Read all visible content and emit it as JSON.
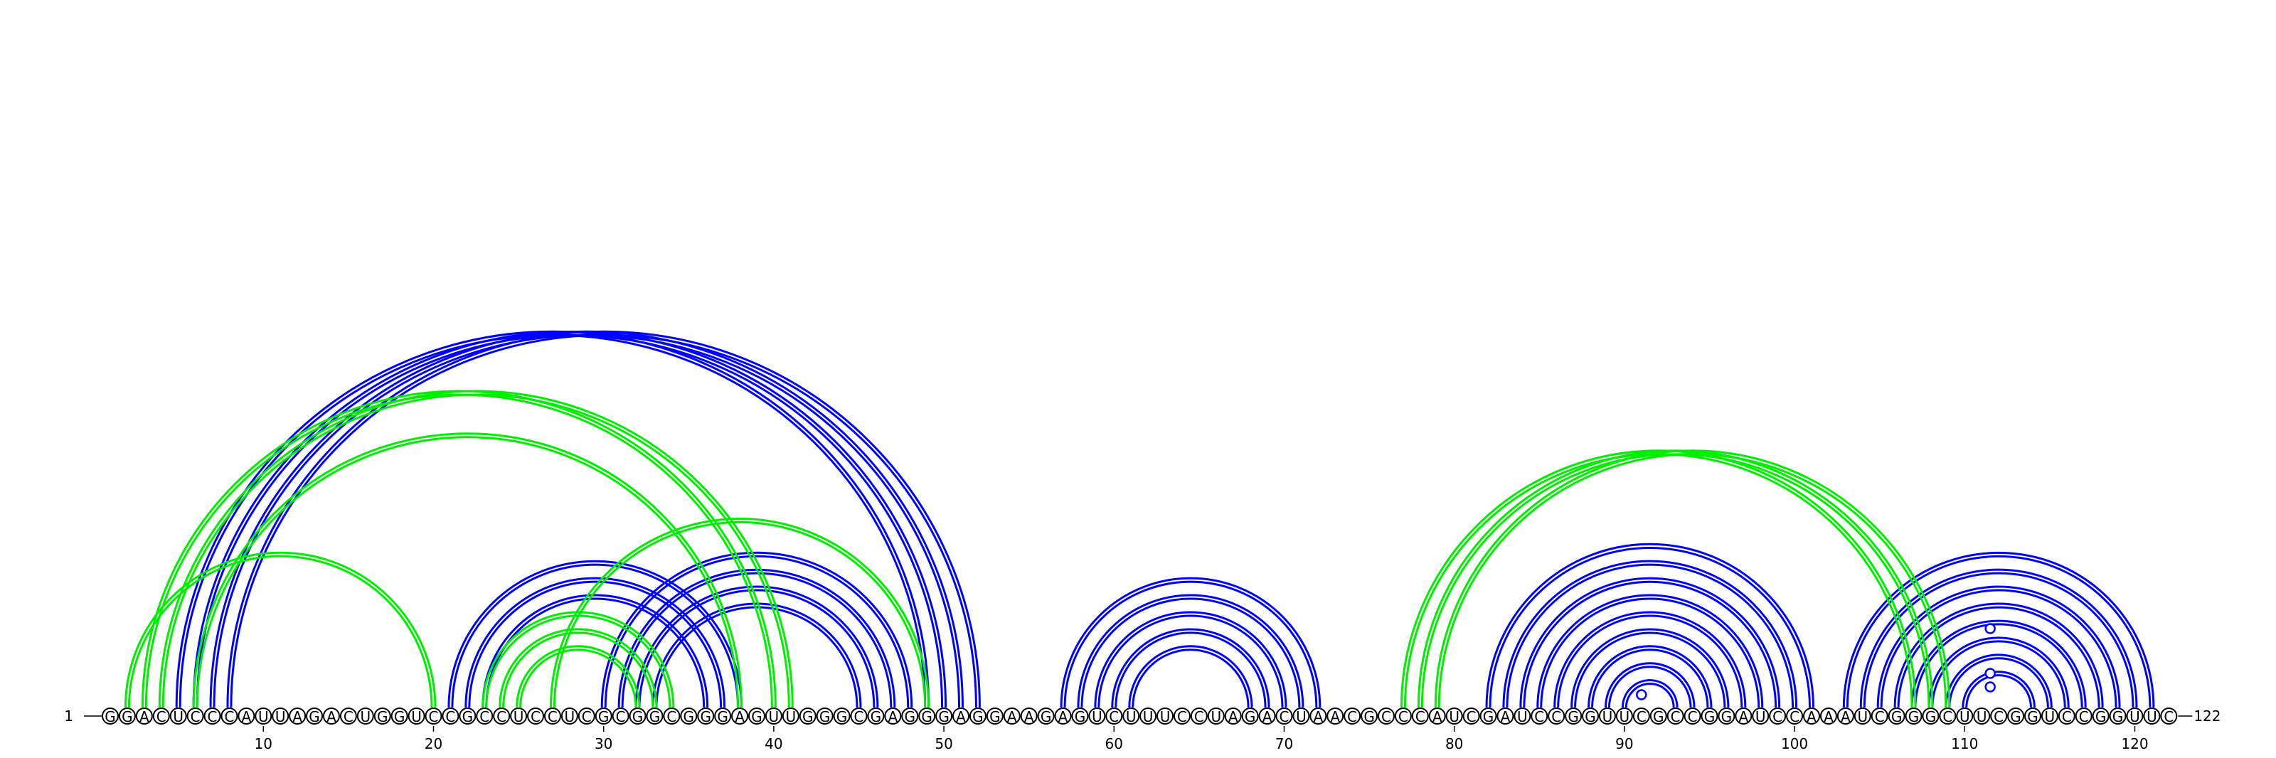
{
  "sequence": "GGACUCCCAUUAGACUGGUCCGCCUCCUCGCGGCGGGAGUUGGGCGAGGGAGGAAGAGUCUUUCCUAGACUAACGCCCAUCGAUCCGGUUCGCCGGAUCCAAAUCGGGCUUCGGUCCGGUUC",
  "start_label": "1",
  "end_label": "122",
  "tick_labels": [
    "10",
    "20",
    "30",
    "40",
    "50",
    "60",
    "70",
    "80",
    "90",
    "100",
    "110",
    "120"
  ],
  "colors": {
    "blue": "#0000ff",
    "green": "#00ee00"
  },
  "arcs": [
    {
      "i": 5,
      "j": 49,
      "color": "blue"
    },
    {
      "i": 6,
      "j": 50,
      "color": "blue"
    },
    {
      "i": 7,
      "j": 51,
      "color": "blue"
    },
    {
      "i": 8,
      "j": 52,
      "color": "blue"
    },
    {
      "i": 21,
      "j": 38,
      "color": "blue"
    },
    {
      "i": 22,
      "j": 37,
      "color": "blue"
    },
    {
      "i": 23,
      "j": 36,
      "color": "blue"
    },
    {
      "i": 30,
      "j": 48,
      "color": "blue"
    },
    {
      "i": 31,
      "j": 47,
      "color": "blue"
    },
    {
      "i": 32,
      "j": 46,
      "color": "blue"
    },
    {
      "i": 33,
      "j": 45,
      "color": "blue"
    },
    {
      "i": 57,
      "j": 72,
      "color": "blue"
    },
    {
      "i": 58,
      "j": 71,
      "color": "blue"
    },
    {
      "i": 59,
      "j": 70,
      "color": "blue"
    },
    {
      "i": 60,
      "j": 69,
      "color": "blue"
    },
    {
      "i": 61,
      "j": 68,
      "color": "blue"
    },
    {
      "i": 82,
      "j": 101,
      "color": "blue"
    },
    {
      "i": 83,
      "j": 100,
      "color": "blue"
    },
    {
      "i": 84,
      "j": 99,
      "color": "blue"
    },
    {
      "i": 85,
      "j": 98,
      "color": "blue"
    },
    {
      "i": 86,
      "j": 97,
      "color": "blue"
    },
    {
      "i": 87,
      "j": 96,
      "color": "blue"
    },
    {
      "i": 88,
      "j": 95,
      "color": "blue"
    },
    {
      "i": 89,
      "j": 94,
      "color": "blue"
    },
    {
      "i": 90,
      "j": 93,
      "color": "blue"
    },
    {
      "i": 103,
      "j": 121,
      "color": "blue"
    },
    {
      "i": 104,
      "j": 120,
      "color": "blue"
    },
    {
      "i": 105,
      "j": 119,
      "color": "blue"
    },
    {
      "i": 106,
      "j": 118,
      "color": "blue"
    },
    {
      "i": 107,
      "j": 117,
      "color": "blue"
    },
    {
      "i": 108,
      "j": 116,
      "color": "blue"
    },
    {
      "i": 109,
      "j": 115,
      "color": "blue"
    },
    {
      "i": 110,
      "j": 114,
      "color": "blue"
    },
    {
      "i": 2,
      "j": 20,
      "color": "green"
    },
    {
      "i": 3,
      "j": 40,
      "color": "green"
    },
    {
      "i": 4,
      "j": 41,
      "color": "green"
    },
    {
      "i": 6,
      "j": 38,
      "color": "green"
    },
    {
      "i": 23,
      "j": 34,
      "color": "green"
    },
    {
      "i": 24,
      "j": 33,
      "color": "green"
    },
    {
      "i": 25,
      "j": 32,
      "color": "green"
    },
    {
      "i": 27,
      "j": 49,
      "color": "green"
    },
    {
      "i": 77,
      "j": 107,
      "color": "green"
    },
    {
      "i": 78,
      "j": 108,
      "color": "green"
    },
    {
      "i": 79,
      "j": 109,
      "color": "green"
    }
  ],
  "markers": [
    {
      "pos": 91.0,
      "height": 1,
      "color": "blue"
    },
    {
      "pos": 111.5,
      "height": 12,
      "color": "blue"
    },
    {
      "pos": 111.5,
      "height": 31,
      "color": "blue"
    },
    {
      "pos": 111.5,
      "height": 94,
      "color": "blue"
    }
  ]
}
